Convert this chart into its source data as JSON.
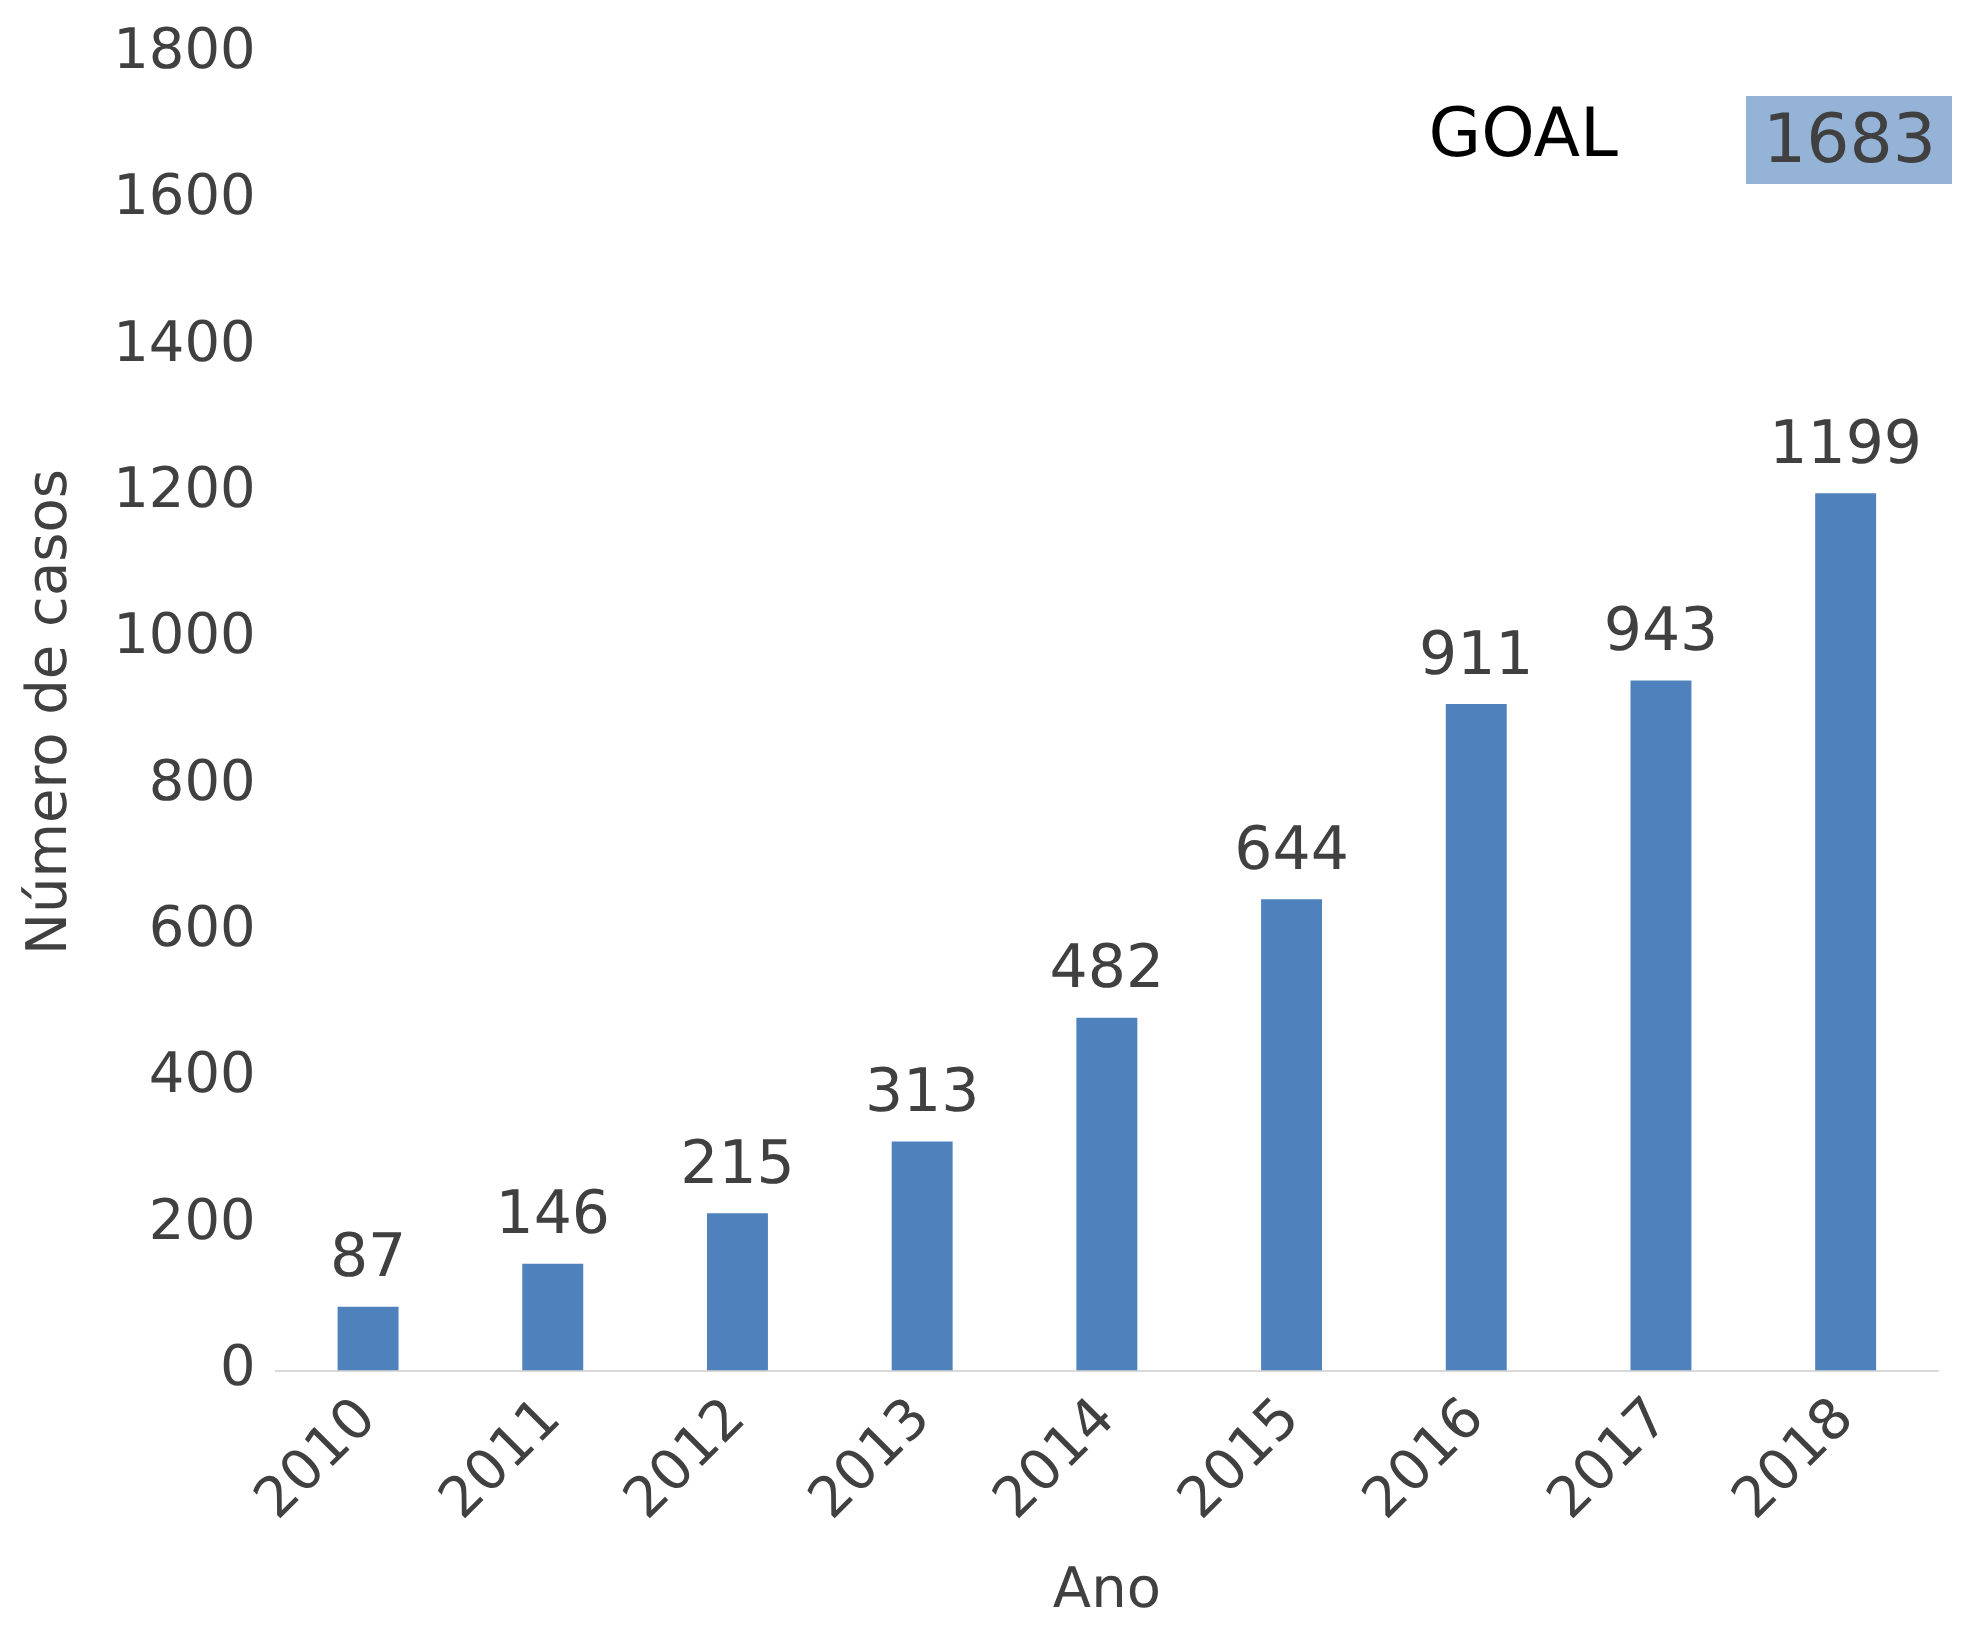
{
  "chart_data": {
    "type": "bar",
    "xlabel": "Ano",
    "ylabel": "Número de casos",
    "categories": [
      "2010",
      "2011",
      "2012",
      "2013",
      "2014",
      "2015",
      "2016",
      "2017",
      "2018"
    ],
    "values": [
      87,
      146,
      215,
      313,
      482,
      644,
      911,
      943,
      1199
    ],
    "color": "#4f81bd",
    "ylim": [
      0,
      1800
    ],
    "yticks": [
      0,
      200,
      400,
      600,
      800,
      1000,
      1200,
      1400,
      1600,
      1800
    ],
    "grid": false,
    "legend": false,
    "data_labels": true,
    "annotations": [
      "GOAL",
      "1683"
    ]
  }
}
